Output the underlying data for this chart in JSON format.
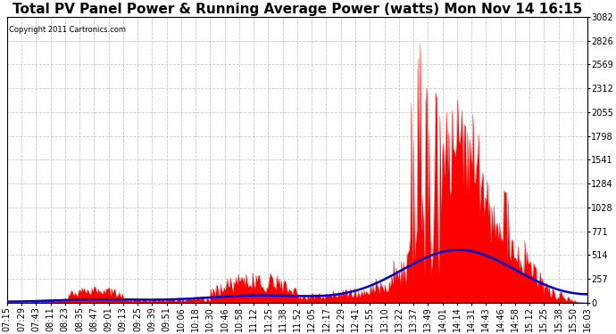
{
  "title": "Total PV Panel Power & Running Average Power (watts) Mon Nov 14 16:15",
  "copyright": "Copyright 2011 Cartronics.com",
  "ymin": 0.0,
  "ymax": 3082.5,
  "yticks": [
    0.0,
    256.9,
    513.7,
    770.6,
    1027.5,
    1284.4,
    1541.2,
    1798.1,
    2055.0,
    2311.9,
    2568.7,
    2825.6,
    3082.5
  ],
  "xtick_labels": [
    "07:15",
    "07:29",
    "07:43",
    "08:11",
    "08:23",
    "08:35",
    "08:47",
    "09:01",
    "09:13",
    "09:25",
    "09:39",
    "09:51",
    "10:06",
    "10:18",
    "10:30",
    "10:46",
    "10:58",
    "11:12",
    "11:25",
    "11:38",
    "11:52",
    "12:05",
    "12:17",
    "12:29",
    "12:41",
    "12:55",
    "13:10",
    "13:22",
    "13:37",
    "13:49",
    "14:01",
    "14:14",
    "14:31",
    "14:43",
    "14:46",
    "14:58",
    "15:12",
    "15:25",
    "15:38",
    "15:50",
    "16:03"
  ],
  "bg_color": "#ffffff",
  "plot_bg_color": "#ffffff",
  "grid_color": "#c8c8c8",
  "area_color": "#ff0000",
  "line_color": "#0000cc",
  "title_fontsize": 11,
  "tick_fontsize": 7
}
